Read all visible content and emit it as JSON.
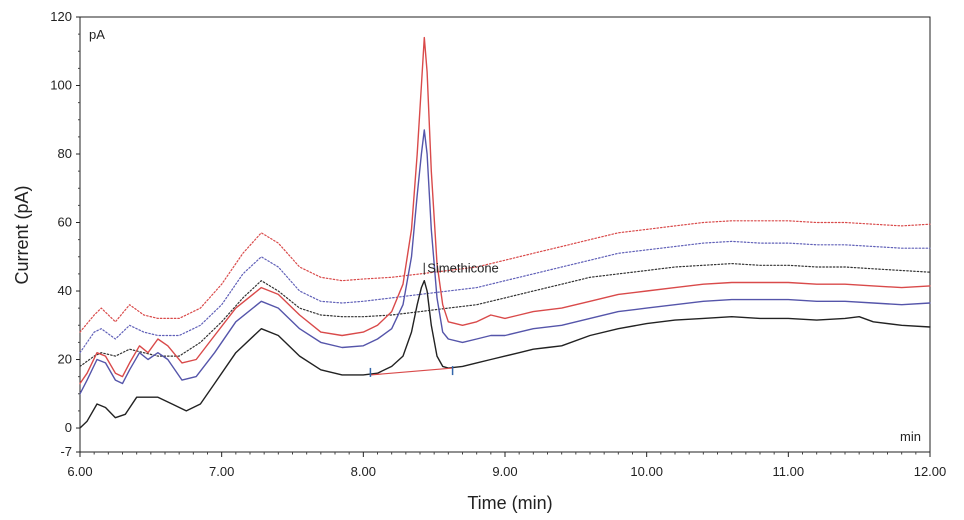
{
  "chart_data": {
    "type": "line",
    "title": "",
    "xlabel": "Time (min)",
    "ylabel": "Current (pA)",
    "corner_y_unit": "pA",
    "corner_x_unit": "min",
    "xlim": [
      6.0,
      12.0
    ],
    "ylim": [
      -7,
      120
    ],
    "x_ticks": [
      6.0,
      7.0,
      8.0,
      9.0,
      10.0,
      11.0,
      12.0
    ],
    "x_tick_labels": [
      "6.00",
      "7.00",
      "8.00",
      "9.00",
      "10.00",
      "11.00",
      "12.00"
    ],
    "y_ticks": [
      -7,
      0,
      20,
      40,
      60,
      80,
      100,
      120
    ],
    "y_tick_labels": [
      "-7",
      "0",
      "20",
      "40",
      "60",
      "80",
      "100",
      "120"
    ],
    "grid": false,
    "legend": "none",
    "series": [
      {
        "color": "#d94a4a",
        "style": "dotted",
        "points": [
          [
            6.0,
            28
          ],
          [
            6.1,
            33
          ],
          [
            6.15,
            35
          ],
          [
            6.25,
            31
          ],
          [
            6.35,
            36
          ],
          [
            6.45,
            33
          ],
          [
            6.55,
            32
          ],
          [
            6.7,
            32
          ],
          [
            6.85,
            35
          ],
          [
            7.0,
            42
          ],
          [
            7.15,
            51
          ],
          [
            7.28,
            57
          ],
          [
            7.4,
            54
          ],
          [
            7.55,
            47
          ],
          [
            7.7,
            44
          ],
          [
            7.85,
            43
          ],
          [
            8.0,
            43.5
          ],
          [
            8.2,
            44
          ],
          [
            8.4,
            45
          ],
          [
            8.6,
            46
          ],
          [
            8.8,
            47
          ],
          [
            9.0,
            49
          ],
          [
            9.2,
            51
          ],
          [
            9.4,
            53
          ],
          [
            9.6,
            55
          ],
          [
            9.8,
            57
          ],
          [
            10.0,
            58
          ],
          [
            10.2,
            59
          ],
          [
            10.4,
            60
          ],
          [
            10.6,
            60.5
          ],
          [
            10.8,
            60.5
          ],
          [
            11.0,
            60.5
          ],
          [
            11.2,
            60
          ],
          [
            11.4,
            60
          ],
          [
            11.6,
            59.5
          ],
          [
            11.8,
            59
          ],
          [
            12.0,
            59.5
          ]
        ]
      },
      {
        "color": "#6060b8",
        "style": "dotted",
        "points": [
          [
            6.0,
            22
          ],
          [
            6.1,
            28
          ],
          [
            6.15,
            29
          ],
          [
            6.25,
            26
          ],
          [
            6.35,
            30
          ],
          [
            6.45,
            28
          ],
          [
            6.55,
            27
          ],
          [
            6.7,
            27
          ],
          [
            6.85,
            30
          ],
          [
            7.0,
            36
          ],
          [
            7.15,
            45
          ],
          [
            7.28,
            50
          ],
          [
            7.4,
            47
          ],
          [
            7.55,
            40
          ],
          [
            7.7,
            37
          ],
          [
            7.85,
            36.5
          ],
          [
            8.0,
            37
          ],
          [
            8.2,
            38
          ],
          [
            8.4,
            39
          ],
          [
            8.6,
            40
          ],
          [
            8.8,
            41
          ],
          [
            9.0,
            43
          ],
          [
            9.2,
            45
          ],
          [
            9.4,
            47
          ],
          [
            9.6,
            49
          ],
          [
            9.8,
            51
          ],
          [
            10.0,
            52
          ],
          [
            10.2,
            53
          ],
          [
            10.4,
            54
          ],
          [
            10.6,
            54.5
          ],
          [
            10.8,
            54
          ],
          [
            11.0,
            54
          ],
          [
            11.2,
            53.5
          ],
          [
            11.4,
            53.5
          ],
          [
            11.6,
            53
          ],
          [
            11.8,
            52.5
          ],
          [
            12.0,
            52.5
          ]
        ]
      },
      {
        "color": "#333333",
        "style": "dotted",
        "points": [
          [
            6.0,
            18
          ],
          [
            6.1,
            21
          ],
          [
            6.15,
            22
          ],
          [
            6.25,
            21
          ],
          [
            6.35,
            23
          ],
          [
            6.45,
            22
          ],
          [
            6.55,
            21
          ],
          [
            6.7,
            21
          ],
          [
            6.85,
            25
          ],
          [
            7.0,
            31
          ],
          [
            7.15,
            38
          ],
          [
            7.28,
            43
          ],
          [
            7.4,
            40
          ],
          [
            7.55,
            35
          ],
          [
            7.7,
            33
          ],
          [
            7.85,
            32.5
          ],
          [
            8.0,
            32.5
          ],
          [
            8.2,
            33
          ],
          [
            8.4,
            34
          ],
          [
            8.6,
            35
          ],
          [
            8.8,
            36
          ],
          [
            9.0,
            38
          ],
          [
            9.2,
            40
          ],
          [
            9.4,
            42
          ],
          [
            9.6,
            44
          ],
          [
            9.8,
            45
          ],
          [
            10.0,
            46
          ],
          [
            10.2,
            47
          ],
          [
            10.4,
            47.5
          ],
          [
            10.6,
            48
          ],
          [
            10.8,
            47.5
          ],
          [
            11.0,
            47.5
          ],
          [
            11.2,
            47
          ],
          [
            11.4,
            47
          ],
          [
            11.6,
            46.5
          ],
          [
            11.8,
            46
          ],
          [
            12.0,
            45.5
          ]
        ]
      },
      {
        "color": "#d94a4a",
        "style": "solid",
        "points": [
          [
            6.0,
            13
          ],
          [
            6.05,
            16
          ],
          [
            6.12,
            22
          ],
          [
            6.18,
            21
          ],
          [
            6.25,
            16
          ],
          [
            6.3,
            15
          ],
          [
            6.35,
            19
          ],
          [
            6.42,
            24
          ],
          [
            6.48,
            22
          ],
          [
            6.55,
            26
          ],
          [
            6.62,
            24
          ],
          [
            6.72,
            19
          ],
          [
            6.82,
            20
          ],
          [
            6.95,
            27
          ],
          [
            7.1,
            35
          ],
          [
            7.28,
            41
          ],
          [
            7.4,
            39
          ],
          [
            7.55,
            33
          ],
          [
            7.7,
            28
          ],
          [
            7.85,
            27
          ],
          [
            8.0,
            28
          ],
          [
            8.1,
            30
          ],
          [
            8.2,
            34
          ],
          [
            8.28,
            42
          ],
          [
            8.34,
            58
          ],
          [
            8.38,
            80
          ],
          [
            8.41,
            100
          ],
          [
            8.43,
            114
          ],
          [
            8.45,
            104
          ],
          [
            8.48,
            75
          ],
          [
            8.52,
            48
          ],
          [
            8.56,
            36
          ],
          [
            8.6,
            31
          ],
          [
            8.7,
            30
          ],
          [
            8.8,
            31
          ],
          [
            8.9,
            33
          ],
          [
            9.0,
            32
          ],
          [
            9.1,
            33
          ],
          [
            9.2,
            34
          ],
          [
            9.4,
            35
          ],
          [
            9.6,
            37
          ],
          [
            9.8,
            39
          ],
          [
            10.0,
            40
          ],
          [
            10.2,
            41
          ],
          [
            10.4,
            42
          ],
          [
            10.6,
            42.5
          ],
          [
            10.8,
            42.5
          ],
          [
            11.0,
            42.5
          ],
          [
            11.2,
            42
          ],
          [
            11.4,
            42
          ],
          [
            11.6,
            41.5
          ],
          [
            11.8,
            41
          ],
          [
            12.0,
            41.5
          ]
        ]
      },
      {
        "color": "#5555aa",
        "style": "solid",
        "points": [
          [
            6.0,
            10
          ],
          [
            6.05,
            14
          ],
          [
            6.12,
            20
          ],
          [
            6.18,
            19
          ],
          [
            6.25,
            14
          ],
          [
            6.3,
            13
          ],
          [
            6.35,
            17
          ],
          [
            6.42,
            22
          ],
          [
            6.48,
            20
          ],
          [
            6.55,
            22
          ],
          [
            6.62,
            20
          ],
          [
            6.72,
            14
          ],
          [
            6.82,
            15
          ],
          [
            6.95,
            22
          ],
          [
            7.1,
            31
          ],
          [
            7.28,
            37
          ],
          [
            7.4,
            35
          ],
          [
            7.55,
            29
          ],
          [
            7.7,
            25
          ],
          [
            7.85,
            23.5
          ],
          [
            8.0,
            24
          ],
          [
            8.1,
            26
          ],
          [
            8.2,
            29
          ],
          [
            8.28,
            36
          ],
          [
            8.34,
            50
          ],
          [
            8.38,
            68
          ],
          [
            8.41,
            80
          ],
          [
            8.43,
            87
          ],
          [
            8.45,
            80
          ],
          [
            8.48,
            58
          ],
          [
            8.52,
            38
          ],
          [
            8.56,
            28
          ],
          [
            8.6,
            26
          ],
          [
            8.7,
            25
          ],
          [
            8.8,
            26
          ],
          [
            8.9,
            27
          ],
          [
            9.0,
            27
          ],
          [
            9.1,
            28
          ],
          [
            9.2,
            29
          ],
          [
            9.4,
            30
          ],
          [
            9.6,
            32
          ],
          [
            9.8,
            34
          ],
          [
            10.0,
            35
          ],
          [
            10.2,
            36
          ],
          [
            10.4,
            37
          ],
          [
            10.6,
            37.5
          ],
          [
            10.8,
            37.5
          ],
          [
            11.0,
            37.5
          ],
          [
            11.2,
            37
          ],
          [
            11.4,
            37
          ],
          [
            11.6,
            36.5
          ],
          [
            11.8,
            36
          ],
          [
            12.0,
            36.5
          ]
        ]
      },
      {
        "color": "#222222",
        "style": "solid",
        "points": [
          [
            6.0,
            0
          ],
          [
            6.05,
            2
          ],
          [
            6.12,
            7
          ],
          [
            6.18,
            6
          ],
          [
            6.25,
            3
          ],
          [
            6.32,
            4
          ],
          [
            6.4,
            9
          ],
          [
            6.48,
            9
          ],
          [
            6.55,
            9
          ],
          [
            6.65,
            7
          ],
          [
            6.75,
            5
          ],
          [
            6.85,
            7
          ],
          [
            6.95,
            13
          ],
          [
            7.1,
            22
          ],
          [
            7.28,
            29
          ],
          [
            7.4,
            27
          ],
          [
            7.55,
            21
          ],
          [
            7.7,
            17
          ],
          [
            7.85,
            15.5
          ],
          [
            8.0,
            15.5
          ],
          [
            8.1,
            16
          ],
          [
            8.2,
            18
          ],
          [
            8.28,
            21
          ],
          [
            8.34,
            28
          ],
          [
            8.38,
            36
          ],
          [
            8.41,
            41
          ],
          [
            8.43,
            43
          ],
          [
            8.45,
            40
          ],
          [
            8.48,
            30
          ],
          [
            8.52,
            21
          ],
          [
            8.56,
            18
          ],
          [
            8.6,
            17.5
          ],
          [
            8.7,
            18
          ],
          [
            8.8,
            19
          ],
          [
            8.9,
            20
          ],
          [
            9.0,
            21
          ],
          [
            9.1,
            22
          ],
          [
            9.2,
            23
          ],
          [
            9.3,
            23.5
          ],
          [
            9.4,
            24
          ],
          [
            9.6,
            27
          ],
          [
            9.8,
            29
          ],
          [
            10.0,
            30.5
          ],
          [
            10.2,
            31.5
          ],
          [
            10.4,
            32
          ],
          [
            10.6,
            32.5
          ],
          [
            10.8,
            32
          ],
          [
            11.0,
            32
          ],
          [
            11.2,
            31.5
          ],
          [
            11.4,
            32
          ],
          [
            11.5,
            32.5
          ],
          [
            11.6,
            31
          ],
          [
            11.8,
            30
          ],
          [
            12.0,
            29.5
          ]
        ]
      }
    ],
    "annotations": [
      {
        "label": "Simethicone",
        "x": 8.43,
        "y": 43,
        "integration_baseline": {
          "color": "#d94a4a",
          "start": [
            8.05,
            15.5
          ],
          "end": [
            8.63,
            17.5
          ],
          "marker_color": "#3366aa"
        }
      }
    ]
  }
}
